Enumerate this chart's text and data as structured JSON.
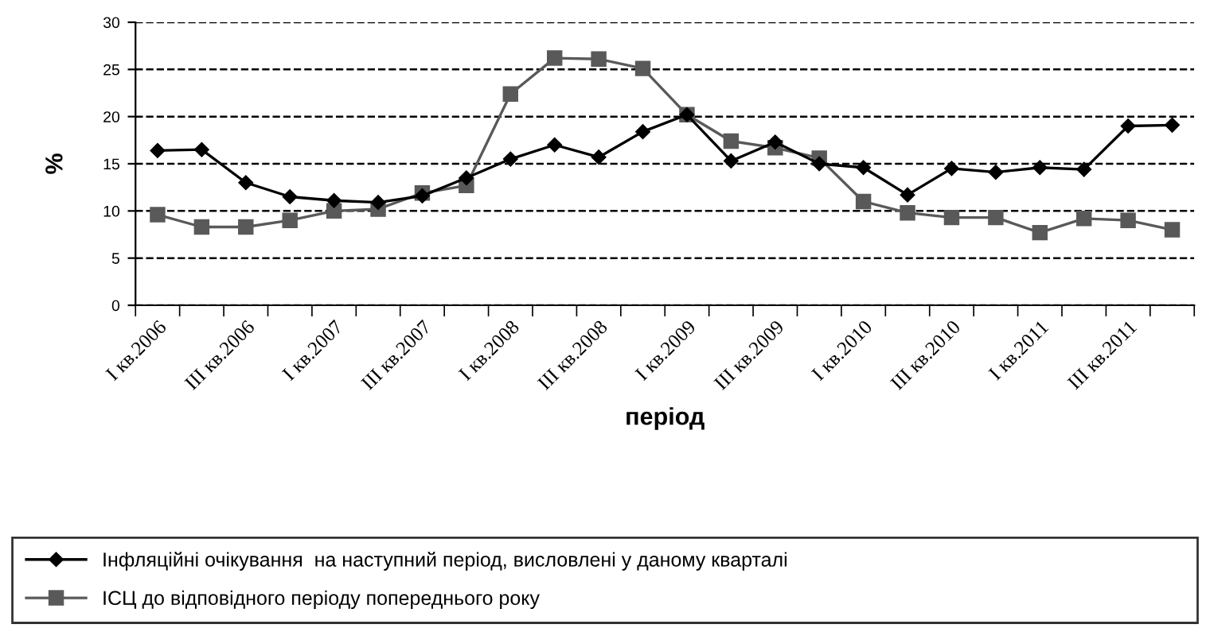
{
  "chart_data": {
    "type": "line",
    "xlabel": "період",
    "ylabel": "%",
    "categories": [
      "I кв.2006",
      null,
      "III кв.2006",
      null,
      "I кв.2007",
      null,
      "III кв.2007",
      null,
      "I кв.2008",
      null,
      "III кв.2008",
      null,
      "I кв.2009",
      null,
      "III кв.2009",
      null,
      "I кв.2010",
      null,
      "III кв.2010",
      null,
      "I кв.2011",
      null,
      "III кв.2011",
      null
    ],
    "series": [
      {
        "name": "Інфляційні очікування  на наступний період, висловлені у даному кварталі",
        "color": "#000000",
        "marker": "diamond",
        "values": [
          16.4,
          16.5,
          13.0,
          11.5,
          11.1,
          10.9,
          11.6,
          13.5,
          15.5,
          17.0,
          15.7,
          18.4,
          20.2,
          15.3,
          17.3,
          15.0,
          14.6,
          11.7,
          14.5,
          14.1,
          14.6,
          14.4,
          19.0,
          19.1
        ]
      },
      {
        "name": "ІСЦ до відповідного періоду попереднього року",
        "color": "#595959",
        "marker": "square",
        "values": [
          9.6,
          8.3,
          8.3,
          9.0,
          10.0,
          10.2,
          11.9,
          12.7,
          22.4,
          26.2,
          26.1,
          25.1,
          20.2,
          17.4,
          16.7,
          15.6,
          11.0,
          9.8,
          9.3,
          9.3,
          7.7,
          9.2,
          9.0,
          8.0
        ]
      }
    ],
    "ylim": [
      0,
      30
    ],
    "yticks": [
      0,
      5,
      10,
      15,
      20,
      25,
      30
    ],
    "grid": "y",
    "line_style": "solid",
    "legend": "bottom"
  }
}
